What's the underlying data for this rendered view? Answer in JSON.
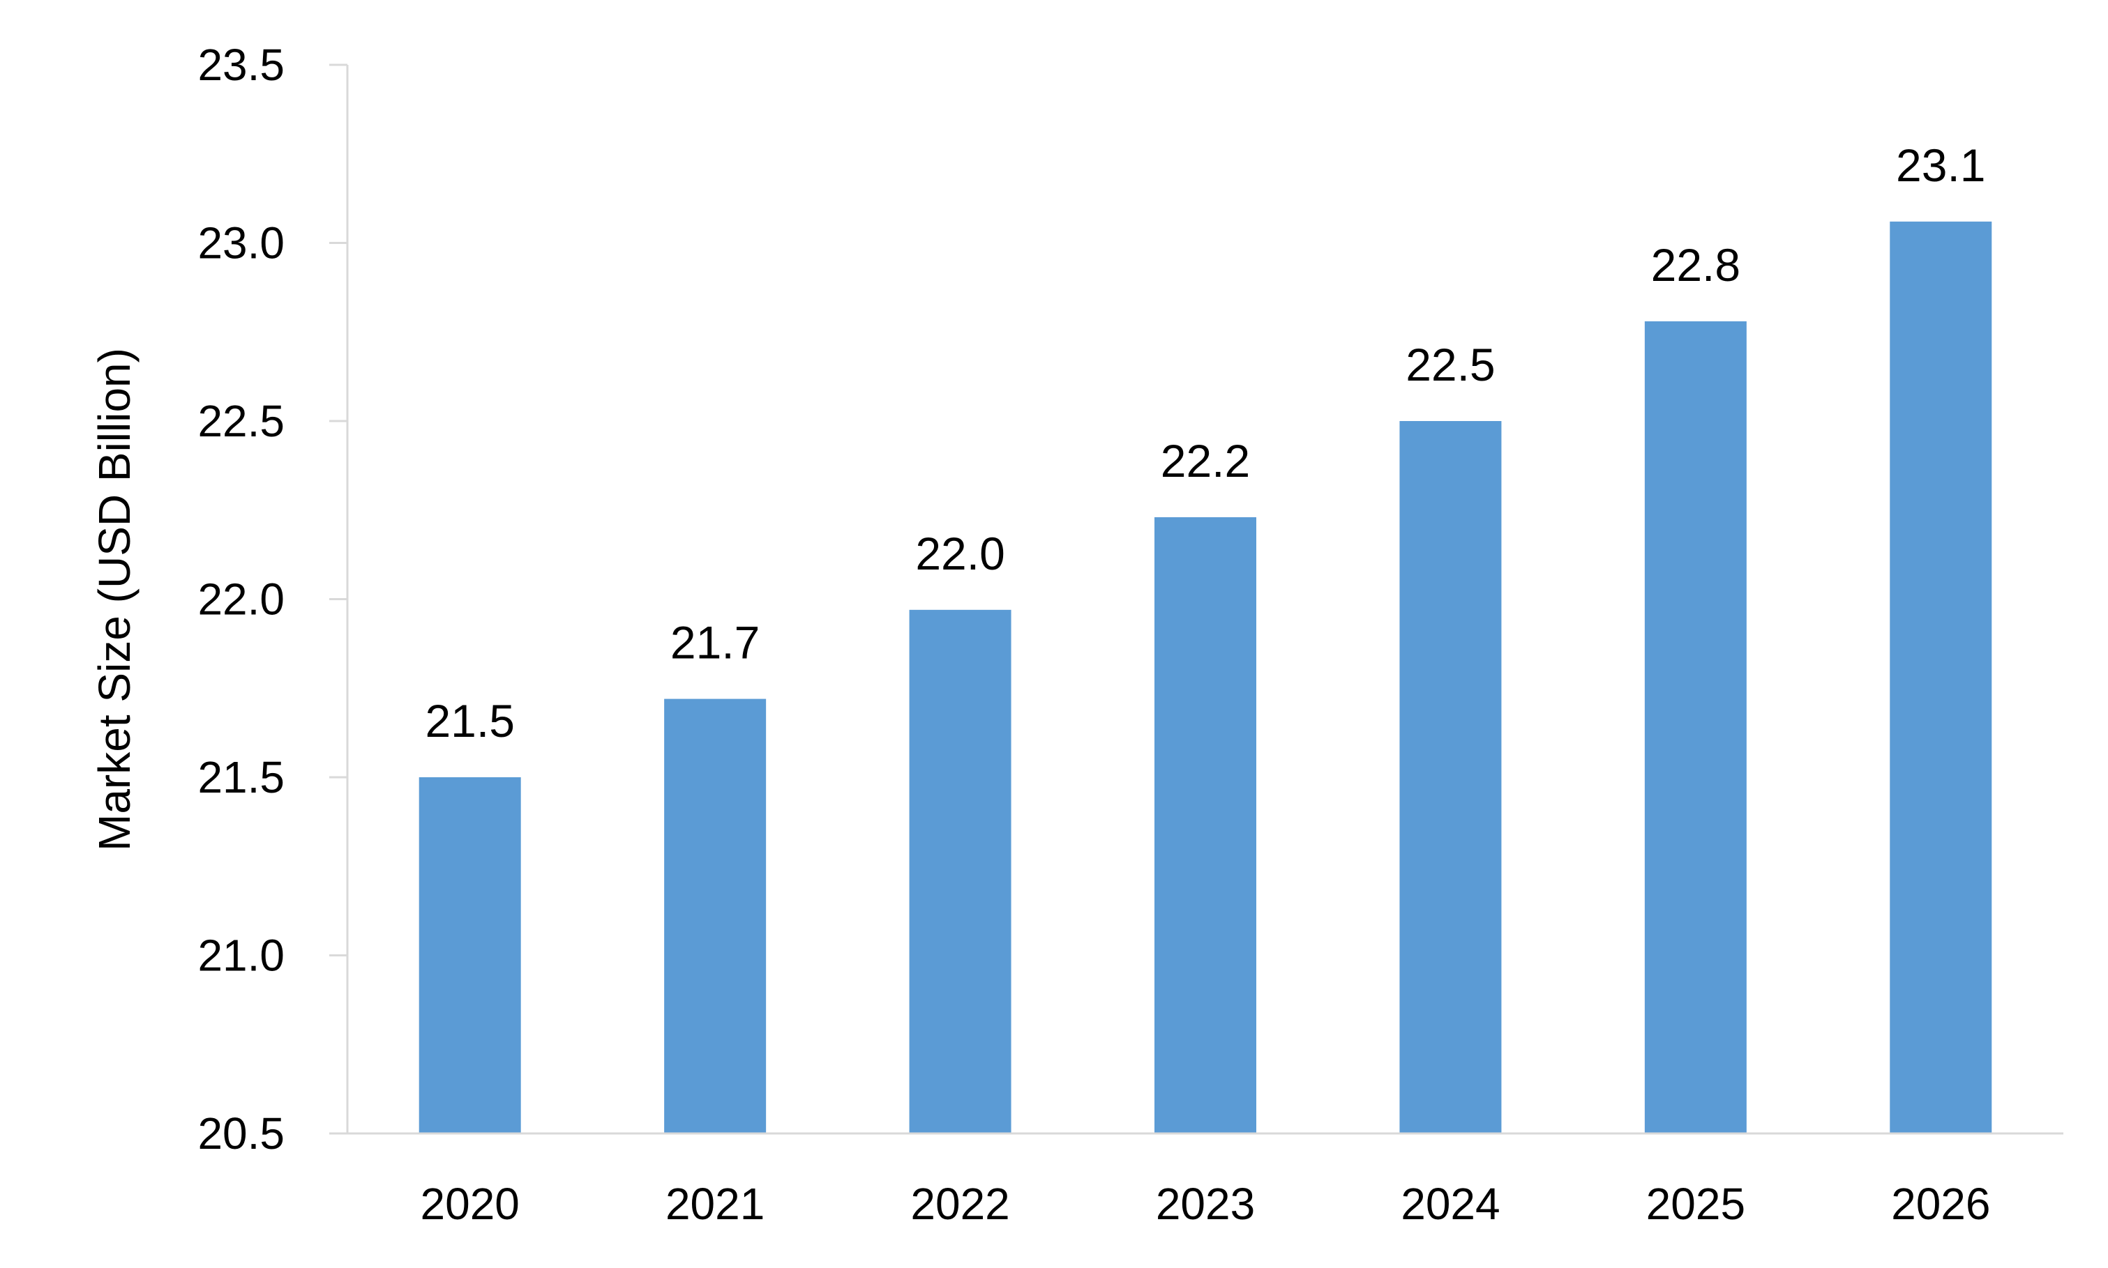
{
  "chart_data": {
    "type": "bar",
    "title": "",
    "xlabel": "",
    "ylabel": "Market Size (USD Billion)",
    "categories": [
      "2020",
      "2021",
      "2022",
      "2023",
      "2024",
      "2025",
      "2026"
    ],
    "values": [
      21.5,
      21.72,
      21.97,
      22.23,
      22.5,
      22.78,
      23.06
    ],
    "data_labels": [
      "21.5",
      "21.7",
      "22.0",
      "22.2",
      "22.5",
      "22.8",
      "23.1"
    ],
    "ylim": [
      20.5,
      23.5
    ],
    "yticks": [
      20.5,
      21.0,
      21.5,
      22.0,
      22.5,
      23.0,
      23.5
    ],
    "ytick_labels": [
      "20.5",
      "21.0",
      "21.5",
      "22.0",
      "22.5",
      "23.0",
      "23.5"
    ],
    "grid": false,
    "legend": "none",
    "bar_color": "#5B9BD5",
    "axis_color": "#D9D9D9"
  }
}
